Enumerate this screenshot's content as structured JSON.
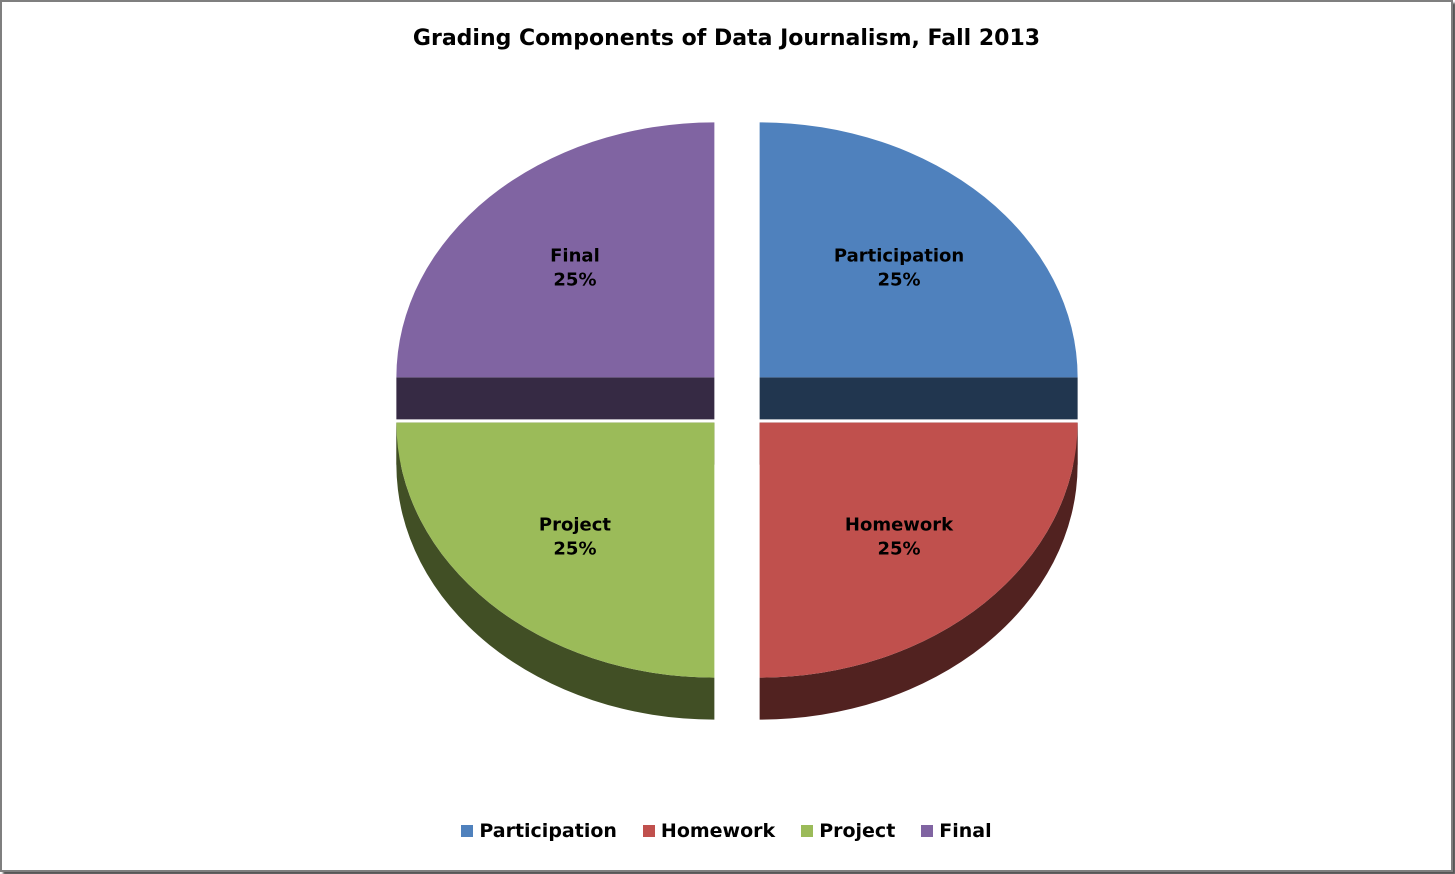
{
  "chart_data": {
    "type": "pie",
    "title": "Grading Components of Data Journalism, Fall 2013",
    "slices": [
      {
        "name": "Participation",
        "value": 25,
        "label": "25%",
        "color": "#4f81bd"
      },
      {
        "name": "Homework",
        "value": 25,
        "label": "25%",
        "color": "#c0504d"
      },
      {
        "name": "Project",
        "value": 25,
        "label": "25%",
        "color": "#9bbb59"
      },
      {
        "name": "Final",
        "value": 25,
        "label": "25%",
        "color": "#8064a2"
      }
    ],
    "exploded": true,
    "style": "3d",
    "legend": {
      "position": "bottom"
    }
  }
}
